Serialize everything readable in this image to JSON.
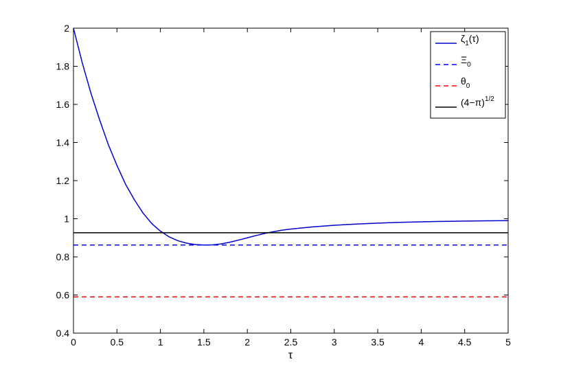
{
  "chart_data": {
    "type": "line",
    "title": "",
    "xlabel": "τ",
    "ylabel": "",
    "xlim": [
      0,
      5
    ],
    "ylim": [
      0.4,
      2
    ],
    "xticks": [
      0,
      0.5,
      1,
      1.5,
      2,
      2.5,
      3,
      3.5,
      4,
      4.5,
      5
    ],
    "xtick_labels": [
      "0",
      "0.5",
      "1",
      "1.5",
      "2",
      "2.5",
      "3",
      "3.5",
      "4",
      "4.5",
      "5"
    ],
    "yticks": [
      0.4,
      0.6,
      0.8,
      1,
      1.2,
      1.4,
      1.6,
      1.8,
      2
    ],
    "ytick_labels": [
      "0.4",
      "0.6",
      "0.8",
      "1",
      "1.2",
      "1.4",
      "1.6",
      "1.8",
      "2"
    ],
    "grid": false,
    "legend_position": "top-right",
    "series": [
      {
        "legend_main": "ζ",
        "legend_sub": "1",
        "legend_tail": "(τ)",
        "color": "#0000cc",
        "style": "solid",
        "x": [
          0,
          0.1,
          0.2,
          0.3,
          0.4,
          0.5,
          0.6,
          0.7,
          0.8,
          0.9,
          1.0,
          1.1,
          1.2,
          1.3,
          1.4,
          1.5,
          1.6,
          1.7,
          1.8,
          1.9,
          2.0,
          2.1,
          2.2,
          2.3,
          2.4,
          2.5,
          2.75,
          3.0,
          3.25,
          3.5,
          3.75,
          4.0,
          4.25,
          4.5,
          4.75,
          5.0
        ],
        "y": [
          2.0,
          1.82,
          1.66,
          1.52,
          1.39,
          1.28,
          1.18,
          1.1,
          1.03,
          0.975,
          0.935,
          0.905,
          0.885,
          0.872,
          0.865,
          0.862,
          0.863,
          0.868,
          0.877,
          0.888,
          0.9,
          0.912,
          0.923,
          0.932,
          0.94,
          0.946,
          0.957,
          0.966,
          0.972,
          0.977,
          0.981,
          0.984,
          0.986,
          0.988,
          0.989,
          0.99
        ]
      },
      {
        "legend_main": "Ξ",
        "legend_sub": "0",
        "legend_tail": "",
        "color": "#0000ff",
        "style": "dashed",
        "x": [
          0,
          5
        ],
        "y": [
          0.862,
          0.862
        ]
      },
      {
        "legend_main": "θ",
        "legend_sub": "0",
        "legend_tail": "",
        "color": "#ff0000",
        "style": "dashed",
        "x": [
          0,
          5
        ],
        "y": [
          0.59,
          0.59
        ]
      },
      {
        "legend_main": "(4−π)",
        "legend_sup": "1/2",
        "legend_tail": "",
        "color": "#000000",
        "style": "solid",
        "x": [
          0,
          5
        ],
        "y": [
          0.9265,
          0.9265
        ]
      }
    ]
  }
}
